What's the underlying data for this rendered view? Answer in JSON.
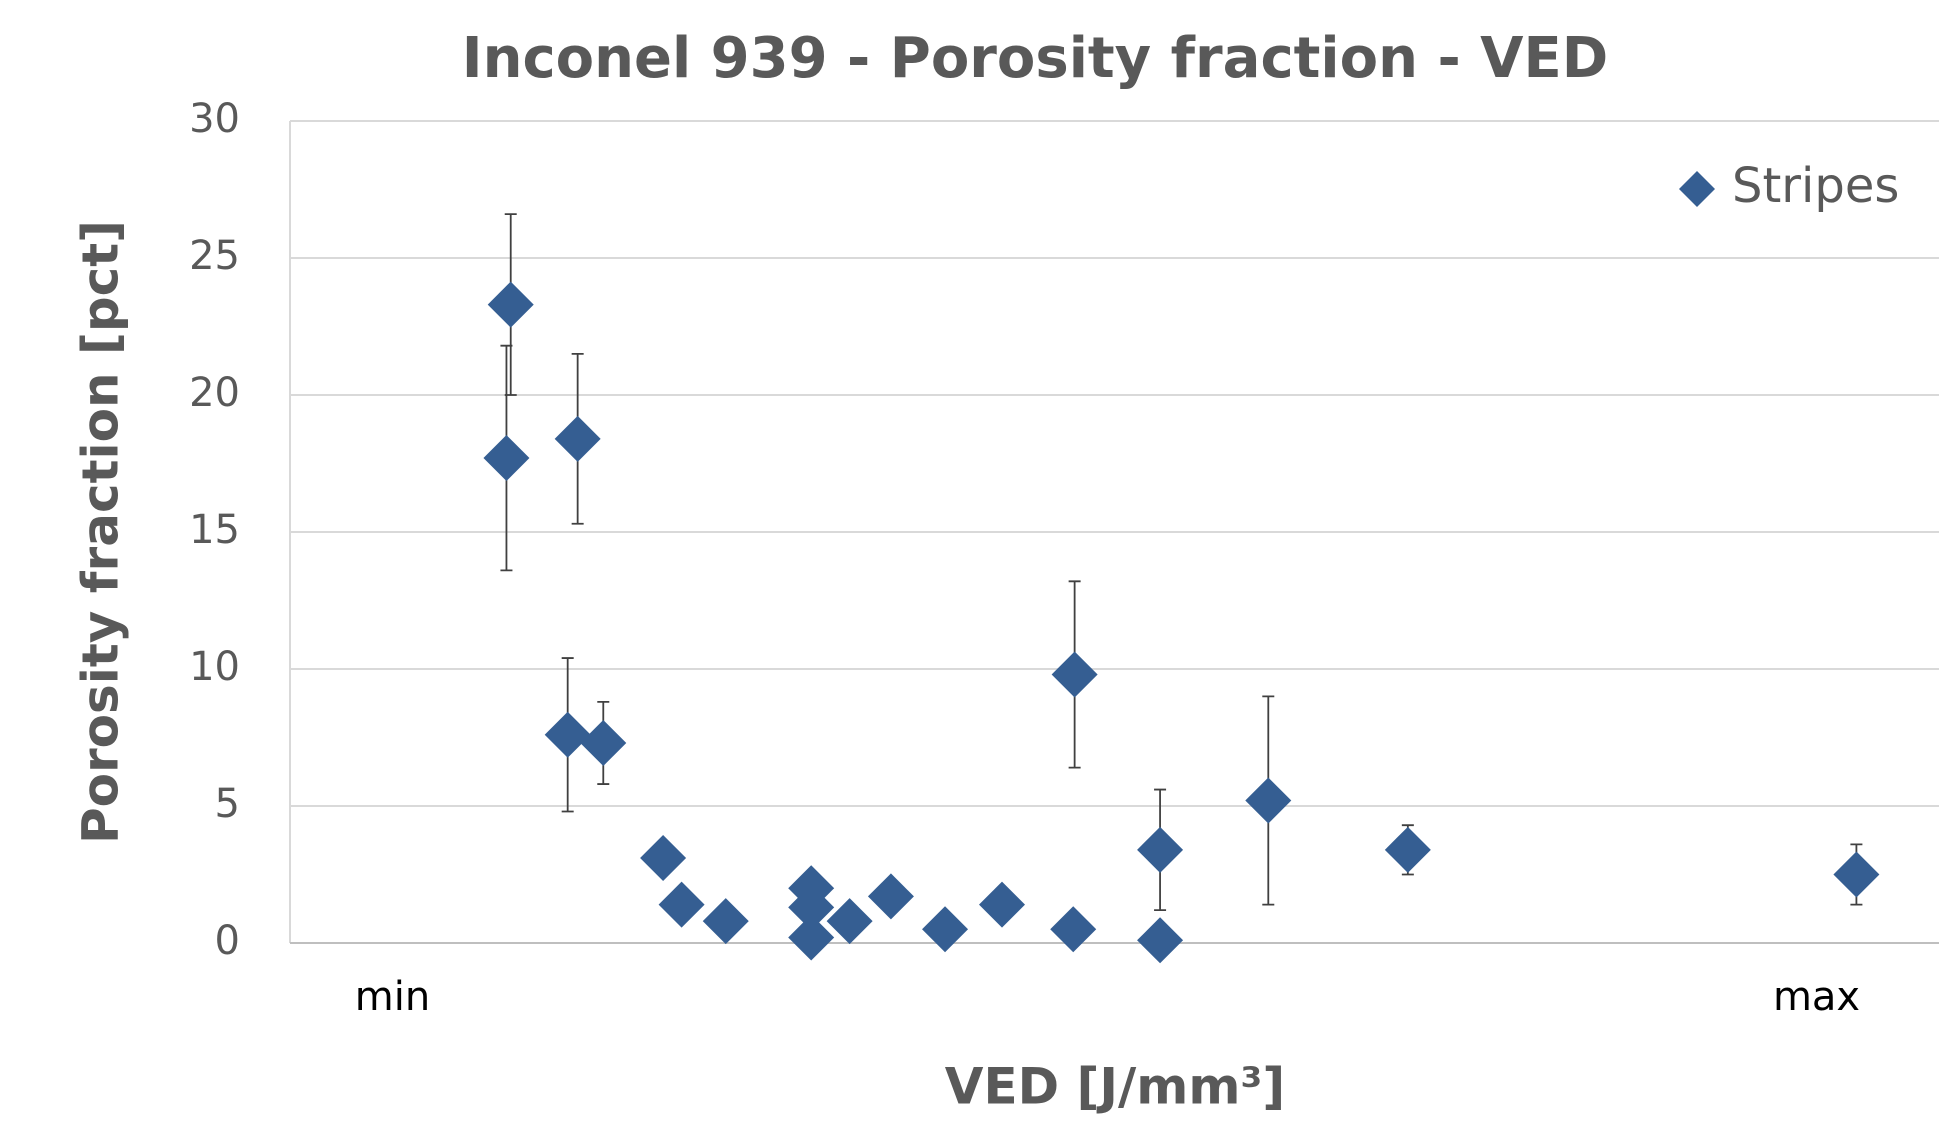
{
  "chart_data": {
    "type": "scatter",
    "title": "Inconel 939 - Porosity fraction - VED",
    "x_label": "VED [J/mm³]",
    "y_label": "Porosity fraction [pct]",
    "series": [
      {
        "name": "Stripes",
        "color": "#355e92",
        "x": [
          8.3,
          8.0,
          13.0,
          12.3,
          14.8,
          19.0,
          20.3,
          23.4,
          29.4,
          29.4,
          29.4,
          32.1,
          35.0,
          38.8,
          42.8,
          47.9,
          47.8,
          53.9,
          53.9,
          61.5,
          71.3,
          102.8
        ],
        "values": [
          23.3,
          17.7,
          18.4,
          7.6,
          7.3,
          3.1,
          1.4,
          0.8,
          2.0,
          1.3,
          0.2,
          0.8,
          1.7,
          0.5,
          1.4,
          9.8,
          0.5,
          3.4,
          0.1,
          5.2,
          3.4,
          2.5
        ],
        "errors": [
          3.3,
          4.1,
          3.1,
          2.8,
          1.5,
          null,
          null,
          null,
          null,
          null,
          null,
          null,
          null,
          null,
          null,
          3.4,
          null,
          2.2,
          null,
          3.8,
          0.9,
          1.1
        ]
      }
    ],
    "xlim": [
      -7.2,
      108.6
    ],
    "xticks": [
      {
        "value": 0,
        "label": "min"
      },
      {
        "value": 100,
        "label": "max"
      }
    ],
    "ylim": [
      0,
      30
    ],
    "yticks": [
      0,
      5,
      10,
      15,
      20,
      25,
      30
    ],
    "grid": true,
    "legend": "top-right"
  }
}
